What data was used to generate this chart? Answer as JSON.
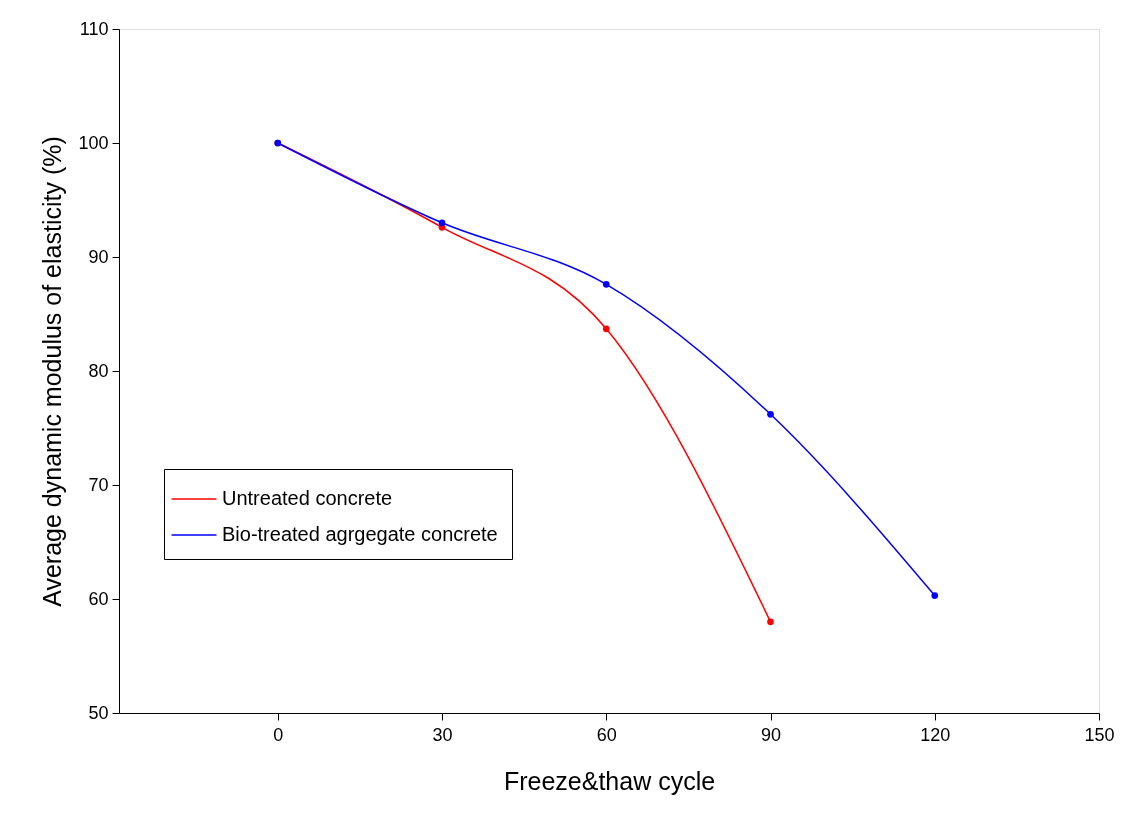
{
  "chart_data": {
    "type": "line",
    "xlabel": "Freeze&thaw cycle",
    "ylabel": "Average dynamic modulus of elasticity (%)",
    "series": [
      {
        "name": "Untreated concrete",
        "color": "#ff0000",
        "x": [
          0,
          30,
          60,
          90
        ],
        "values": [
          100,
          92.6,
          83.7,
          58.0
        ]
      },
      {
        "name": "Bio-treated agrgegate concrete",
        "color": "#0000ff",
        "x": [
          0,
          30,
          60,
          90,
          120
        ],
        "values": [
          100,
          93.0,
          87.6,
          76.2,
          60.3
        ]
      }
    ],
    "xlim": [
      -29,
      150
    ],
    "xticks": [
      0,
      30,
      60,
      90,
      120,
      150
    ],
    "ylim": [
      50,
      110
    ],
    "yticks": [
      50,
      60,
      70,
      80,
      90,
      100,
      110
    ],
    "grid": false,
    "legend": "left",
    "marker": "circle",
    "line_style": "solid"
  }
}
